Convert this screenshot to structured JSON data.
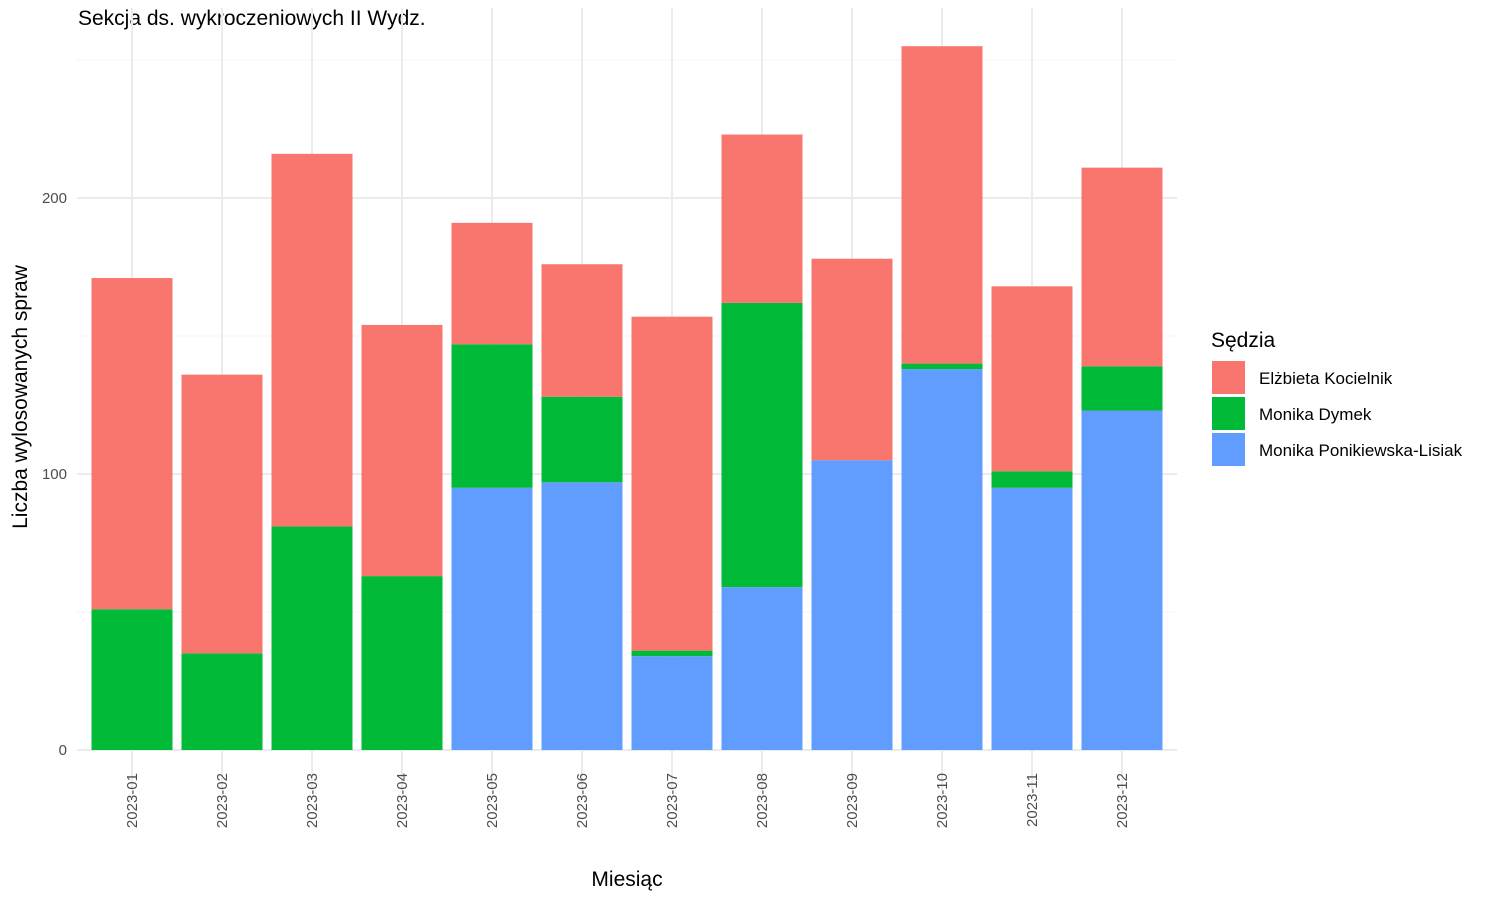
{
  "chart_data": {
    "type": "bar",
    "stacked": true,
    "title": "Sekcja ds. wykroczeniowych II Wydz.",
    "xlabel": "Miesiąc",
    "ylabel": "Liczba wylosowanych spraw",
    "legend_title": "Sędzia",
    "legend_position": "right",
    "grid": true,
    "ylim": [
      0,
      255
    ],
    "yticks": [
      0,
      100,
      200
    ],
    "categories": [
      "2023-01",
      "2023-02",
      "2023-03",
      "2023-04",
      "2023-05",
      "2023-06",
      "2023-07",
      "2023-08",
      "2023-09",
      "2023-10",
      "2023-11",
      "2023-12"
    ],
    "series": [
      {
        "name": "Elżbieta Kocielnik",
        "color": "#F8766D",
        "values": [
          120,
          101,
          135,
          91,
          44,
          48,
          121,
          61,
          73,
          115,
          67,
          72
        ]
      },
      {
        "name": "Monika Dymek",
        "color": "#00BA38",
        "values": [
          51,
          35,
          81,
          63,
          52,
          31,
          2,
          103,
          0,
          2,
          6,
          16
        ]
      },
      {
        "name": "Monika Ponikiewska-Lisiak",
        "color": "#619CFF",
        "values": [
          0,
          0,
          0,
          0,
          95,
          97,
          34,
          59,
          105,
          138,
          95,
          123
        ]
      }
    ]
  }
}
